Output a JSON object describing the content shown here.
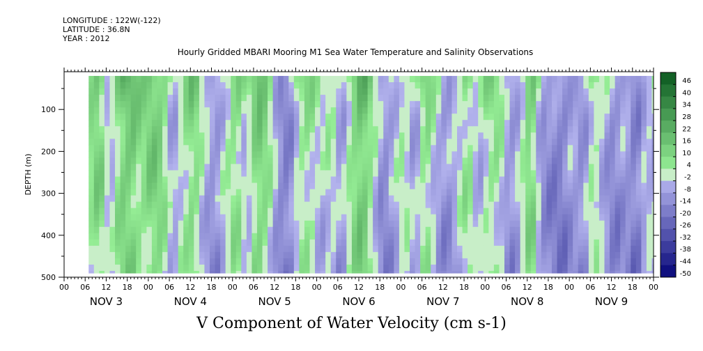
{
  "header": {
    "longitude": "LONGITUDE : 122W(-122)",
    "latitude": "LATITUDE : 36.8N",
    "year": "YEAR : 2012"
  },
  "chart_data": {
    "type": "heatmap",
    "title": "Hourly Gridded MBARI Mooring M1 Sea Water Temperature and Salinity Observations",
    "xlabel": "V Component of Water Velocity (cm s-1)",
    "ylabel": "DEPTH (m)",
    "ylim": [
      500,
      10
    ],
    "y_ticks": [
      100,
      200,
      300,
      400,
      500
    ],
    "x_hour_tick_labels": [
      "00",
      "06",
      "12",
      "18",
      "00",
      "06",
      "12",
      "18",
      "00",
      "06",
      "12",
      "18",
      "00",
      "06",
      "12",
      "18",
      "00",
      "06",
      "12",
      "18",
      "00",
      "06",
      "12",
      "18",
      "00",
      "06",
      "12",
      "18",
      "00"
    ],
    "x_day_labels": [
      "NOV  3",
      "NOV  4",
      "NOV  5",
      "NOV  6",
      "NOV  7",
      "NOV  8",
      "NOV  9"
    ],
    "xlim_hours": [
      0,
      168
    ],
    "data_hours": [
      7,
      168
    ],
    "data_depth_m": [
      20,
      490
    ],
    "colorbar": {
      "levels": [
        46,
        40,
        34,
        28,
        22,
        16,
        10,
        4,
        -2,
        -8,
        -14,
        -20,
        -26,
        -32,
        -38,
        -44,
        -50
      ],
      "range": [
        -50,
        52
      ]
    },
    "band_values_hours": [
      [
        7,
        4
      ],
      [
        10,
        14
      ],
      [
        13,
        -6
      ],
      [
        16,
        12
      ],
      [
        19,
        16
      ],
      [
        22,
        6
      ],
      [
        25,
        14
      ],
      [
        28,
        10
      ],
      [
        31,
        -8
      ],
      [
        34,
        4
      ],
      [
        37,
        12
      ],
      [
        40,
        -4
      ],
      [
        43,
        -12
      ],
      [
        46,
        0
      ],
      [
        49,
        10
      ],
      [
        52,
        -4
      ],
      [
        55,
        14
      ],
      [
        58,
        8
      ],
      [
        61,
        -12
      ],
      [
        64,
        -16
      ],
      [
        67,
        4
      ],
      [
        70,
        6
      ],
      [
        73,
        -4
      ],
      [
        76,
        2
      ],
      [
        79,
        -10
      ],
      [
        82,
        8
      ],
      [
        85,
        18
      ],
      [
        88,
        4
      ],
      [
        91,
        -14
      ],
      [
        94,
        -6
      ],
      [
        97,
        4
      ],
      [
        100,
        -8
      ],
      [
        103,
        10
      ],
      [
        106,
        -4
      ],
      [
        109,
        -12
      ],
      [
        112,
        -4
      ],
      [
        115,
        8
      ],
      [
        118,
        -6
      ],
      [
        121,
        6
      ],
      [
        124,
        4
      ],
      [
        127,
        -12
      ],
      [
        130,
        -4
      ],
      [
        133,
        16
      ],
      [
        136,
        -10
      ],
      [
        139,
        -14
      ],
      [
        142,
        -16
      ],
      [
        145,
        -8
      ],
      [
        148,
        -12
      ],
      [
        151,
        6
      ],
      [
        154,
        -6
      ],
      [
        157,
        -14
      ],
      [
        160,
        -8
      ],
      [
        163,
        -18
      ],
      [
        166,
        -2
      ],
      [
        168,
        -4
      ]
    ]
  }
}
